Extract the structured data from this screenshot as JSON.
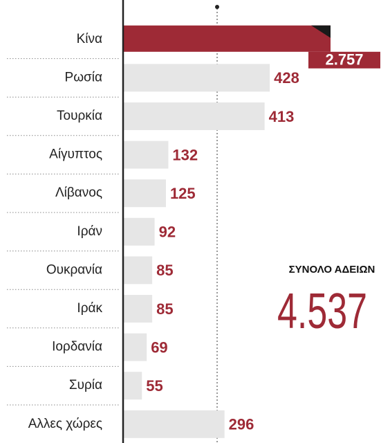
{
  "chart_data": {
    "type": "hbar",
    "categories": [
      "Κίνα",
      "Ρωσία",
      "Τουρκία",
      "Αίγυπτος",
      "Λίβανος",
      "Ιράν",
      "Ουκρανία",
      "Ιράκ",
      "Ιορδανία",
      "Συρία",
      "Αλλες χώρες"
    ],
    "values": [
      2757,
      428,
      413,
      132,
      125,
      92,
      85,
      85,
      69,
      55,
      296
    ],
    "value_labels": [
      "2.757",
      "428",
      "413",
      "132",
      "125",
      "92",
      "85",
      "85",
      "69",
      "55",
      "296"
    ],
    "color": "#e6e6e6",
    "highlight_color": "#9e2a36",
    "highlight": 0,
    "xlim": [
      0,
      450
    ],
    "total_label": "ΣΥΝΟΛΟ ΑΔΕΙΩΝ",
    "total": "4.537"
  }
}
